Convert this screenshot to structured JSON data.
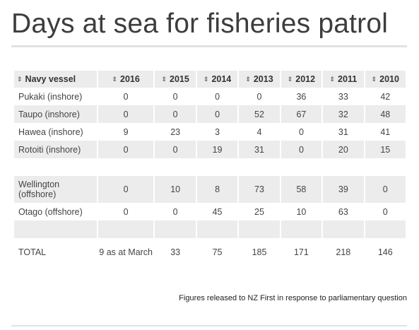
{
  "chart_data": {
    "type": "table",
    "title": "Days at sea for fisheries patrol",
    "columns": [
      "Navy vessel",
      "2016",
      "2015",
      "2014",
      "2013",
      "2012",
      "2011",
      "2010"
    ],
    "rows": [
      {
        "vessel": "Pukaki (inshore)",
        "values": [
          "0",
          "0",
          "0",
          "0",
          "36",
          "33",
          "42"
        ]
      },
      {
        "vessel": "Taupo (inshore)",
        "values": [
          "0",
          "0",
          "0",
          "52",
          "67",
          "32",
          "48"
        ]
      },
      {
        "vessel": "Hawea (inshore)",
        "values": [
          "9",
          "23",
          "3",
          "4",
          "0",
          "31",
          "41"
        ]
      },
      {
        "vessel": "Rotoiti (inshore)",
        "values": [
          "0",
          "0",
          "19",
          "31",
          "0",
          "20",
          "15"
        ]
      },
      {
        "vessel": "",
        "values": [
          "",
          "",
          "",
          "",
          "",
          "",
          ""
        ]
      },
      {
        "vessel": "Wellington (offshore)",
        "values": [
          "0",
          "10",
          "8",
          "73",
          "58",
          "39",
          "0"
        ]
      },
      {
        "vessel": "Otago (offshore)",
        "values": [
          "0",
          "0",
          "45",
          "25",
          "10",
          "63",
          "0"
        ]
      },
      {
        "vessel": "",
        "values": [
          "",
          "",
          "",
          "",
          "",
          "",
          ""
        ]
      },
      {
        "vessel": "TOTAL",
        "values": [
          "9 as at March",
          "33",
          "75",
          "185",
          "171",
          "218",
          "146"
        ]
      }
    ],
    "source": "Figures released to NZ First in response to parliamentary question",
    "sort_icon": "sort-arrows-icon"
  }
}
